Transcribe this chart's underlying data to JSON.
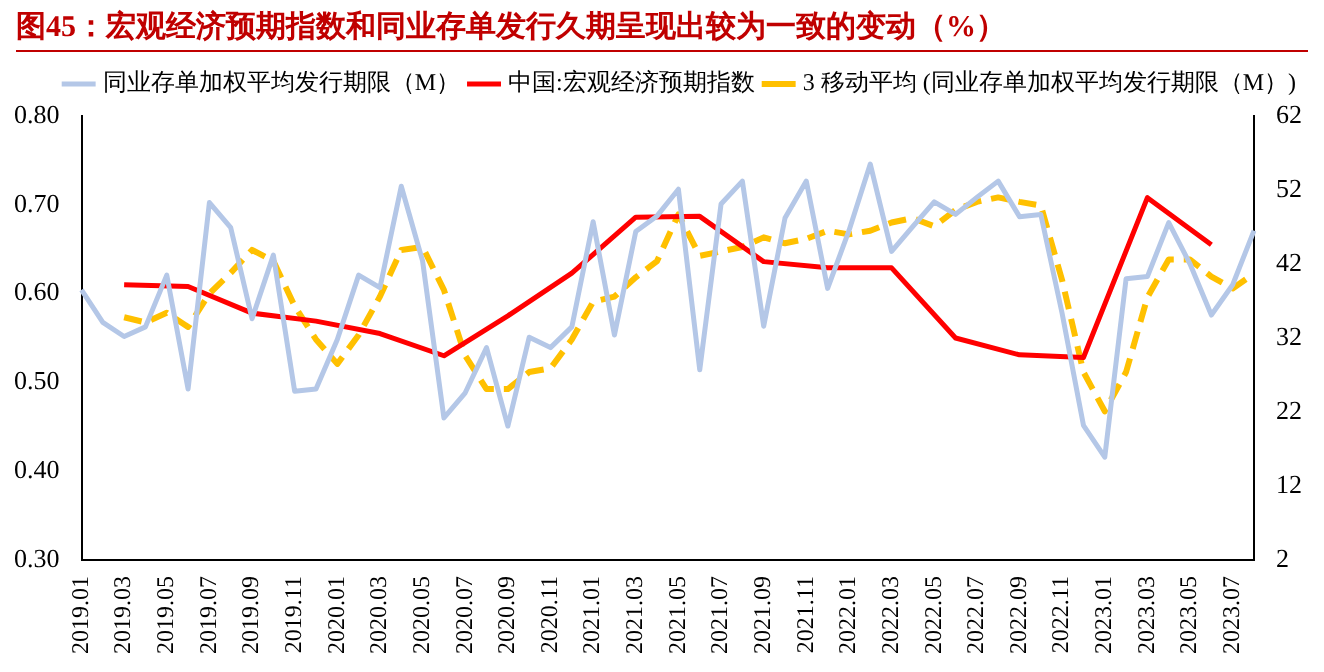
{
  "chart_data": {
    "type": "line",
    "title": "图45：宏观经济预期指数和同业存单发行久期呈现出较为一致的变动（%）",
    "categories": [
      "2019.01",
      null,
      "2019.03",
      null,
      "2019.05",
      null,
      "2019.07",
      null,
      "2019.09",
      null,
      "2019.11",
      null,
      "2020.01",
      null,
      "2020.03",
      null,
      "2020.05",
      null,
      "2020.07",
      null,
      "2020.09",
      null,
      "2020.11",
      null,
      "2021.01",
      null,
      "2021.03",
      null,
      "2021.05",
      null,
      "2021.07",
      null,
      "2021.09",
      null,
      "2021.11",
      null,
      "2022.01",
      null,
      "2022.03",
      null,
      "2022.05",
      null,
      "2022.07",
      null,
      "2022.09",
      null,
      "2022.11",
      null,
      "2023.01",
      null,
      "2023.03",
      null,
      "2023.05",
      null,
      "2023.07",
      null
    ],
    "series": [
      {
        "name": "同业存单加权平均发行期限（M）",
        "color": "#b4c7e7",
        "axis": "y2",
        "line_style": "solid",
        "values": [
          38.5,
          34.1,
          32.2,
          33.5,
          40.5,
          25.1,
          50.3,
          46.9,
          34.6,
          43.2,
          24.8,
          25.1,
          31.8,
          40.5,
          38.8,
          52.5,
          42.4,
          21.2,
          24.6,
          30.7,
          20.1,
          32.1,
          30.7,
          33.5,
          47.7,
          32.4,
          46.4,
          48.5,
          52.1,
          27.7,
          50.1,
          53.2,
          33.6,
          48.2,
          53.2,
          38.7,
          46.5,
          55.5,
          43.7,
          47.1,
          50.4,
          48.7,
          51.0,
          53.2,
          48.4,
          48.7,
          35.3,
          20.2,
          15.9,
          40.0,
          40.3,
          47.6,
          42.0,
          35.1,
          39.2,
          46.5
        ]
      },
      {
        "name": "中国:宏观经济预期指数",
        "color": "#ff0000",
        "line_style": "solid",
        "values": [
          null,
          null,
          0.61,
          null,
          null,
          0.608,
          null,
          null,
          0.578,
          null,
          null,
          0.569,
          null,
          null,
          0.555,
          null,
          null,
          0.53,
          null,
          null,
          0.575,
          null,
          null,
          0.623,
          null,
          null,
          0.686,
          null,
          null,
          0.687,
          null,
          null,
          0.636,
          null,
          null,
          0.629,
          null,
          null,
          0.629,
          null,
          null,
          0.55,
          null,
          null,
          0.531,
          null,
          null,
          0.528,
          null,
          null,
          0.708,
          null,
          null,
          0.655,
          null,
          null
        ]
      },
      {
        "name": "3 移动平均 (同业存单加权平均发行期限（M）)",
        "color": "#ffc000",
        "axis": "y2",
        "line_style": "dashed",
        "values": [
          null,
          null,
          34.8,
          34.1,
          35.4,
          33.5,
          38.0,
          40.8,
          43.9,
          42.4,
          36.3,
          31.8,
          28.5,
          32.4,
          37.6,
          43.9,
          44.3,
          38.5,
          29.6,
          25.1,
          25.1,
          27.4,
          27.9,
          31.8,
          36.9,
          37.6,
          40.2,
          42.4,
          48.7,
          43.1,
          43.7,
          44.3,
          45.6,
          44.8,
          45.4,
          46.5,
          46.0,
          46.5,
          47.6,
          48.2,
          47.1,
          49.3,
          50.4,
          51.0,
          50.4,
          49.9,
          39.8,
          27.4,
          22.1,
          27.4,
          37.5,
          42.6,
          42.6,
          40.3,
          38.7,
          40.7
        ]
      }
    ],
    "ylim": [
      0.3,
      0.8
    ],
    "yticks": [
      {
        "value": 0.3,
        "label": "0.30"
      },
      {
        "value": 0.4,
        "label": "0.40"
      },
      {
        "value": 0.5,
        "label": "0.50"
      },
      {
        "value": 0.6,
        "label": "0.60"
      },
      {
        "value": 0.7,
        "label": "0.70"
      },
      {
        "value": 0.8,
        "label": "0.80"
      }
    ],
    "y2lim": [
      2,
      62
    ],
    "y2ticks": [
      2,
      12,
      22,
      32,
      42,
      52,
      62
    ],
    "grid": false,
    "legend": "top right",
    "marker": "none"
  }
}
